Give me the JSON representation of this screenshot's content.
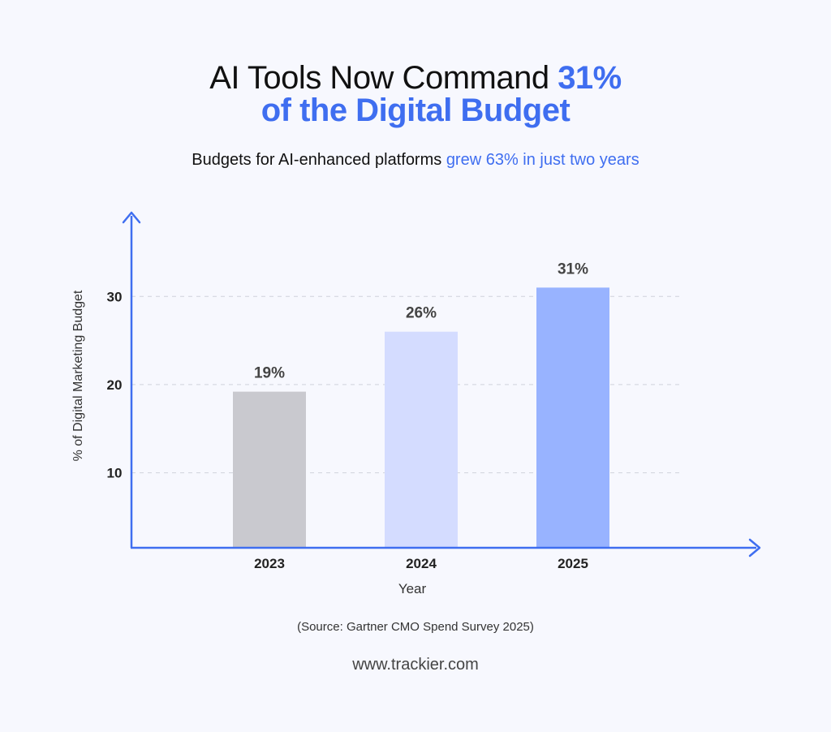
{
  "header": {
    "title_line1_main": "AI Tools Now Command ",
    "title_line1_accent": "31%",
    "title_line2": "of the Digital Budget",
    "subtitle_main": "Budgets for AI-enhanced platforms ",
    "subtitle_accent": "grew 63% in just two years"
  },
  "chart_data": {
    "type": "bar",
    "title": "AI Tools Now Command 31% of the Digital Budget",
    "subtitle": "Budgets for AI-enhanced platforms grew 63% in just two years",
    "xlabel": "Year",
    "ylabel": "% of Digital Marketing Budget",
    "categories": [
      "2023",
      "2024",
      "2025"
    ],
    "values": [
      19.2,
      26,
      31
    ],
    "data_labels": [
      "19%",
      "26%",
      "31%"
    ],
    "bar_colors": [
      "#c9c9cf",
      "#d4dcff",
      "#98b3ff"
    ],
    "yticks": [
      10,
      20,
      30
    ],
    "ylim": [
      1.5,
      39.5
    ],
    "grid": "dashed horizontal at ticks",
    "axis_color": "#3f6ef0"
  },
  "footer": {
    "source": "(Source: Gartner CMO Spend Survey 2025)",
    "website": "www.trackier.com"
  }
}
